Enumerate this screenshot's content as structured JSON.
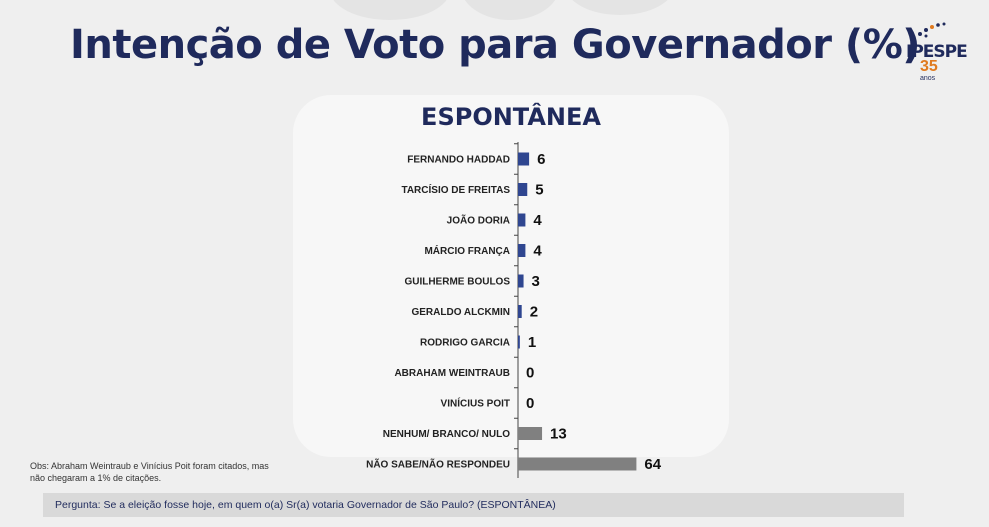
{
  "page": {
    "title": "Intenção de Voto para Governador (%)",
    "logo": {
      "brand": "IPESPE",
      "years": "35",
      "anos": "anos"
    },
    "note": "Obs: Abraham Weintraub e Vinícius Poit foram citados, mas não chegaram a 1% de citações.",
    "question": "Pergunta:  Se a eleição fosse hoje, em quem o(a) Sr(a) votaria Governador de São Paulo? (ESPONTÂNEA)"
  },
  "colors": {
    "title": "#1f2a5c",
    "candidate_bar": "#2f4690",
    "other_bar": "#808080"
  },
  "chart_data": {
    "type": "bar",
    "orientation": "horizontal",
    "title": "ESPONTÂNEA",
    "xlabel": "",
    "ylabel": "",
    "categories": [
      "FERNANDO HADDAD",
      "TARCÍSIO DE FREITAS",
      "JOÃO DORIA",
      "MÁRCIO FRANÇA",
      "GUILHERME BOULOS",
      "GERALDO ALCKMIN",
      "RODRIGO GARCIA",
      "ABRAHAM WEINTRAUB",
      "VINÍCIUS POIT",
      "NENHUM/ BRANCO/ NULO",
      "NÃO SABE/NÃO RESPONDEU"
    ],
    "values": [
      6,
      5,
      4,
      4,
      3,
      2,
      1,
      0,
      0,
      13,
      64
    ],
    "bar_colors": [
      "#2f4690",
      "#2f4690",
      "#2f4690",
      "#2f4690",
      "#2f4690",
      "#2f4690",
      "#2f4690",
      "#2f4690",
      "#2f4690",
      "#808080",
      "#808080"
    ],
    "grid": false,
    "legend": "none"
  }
}
